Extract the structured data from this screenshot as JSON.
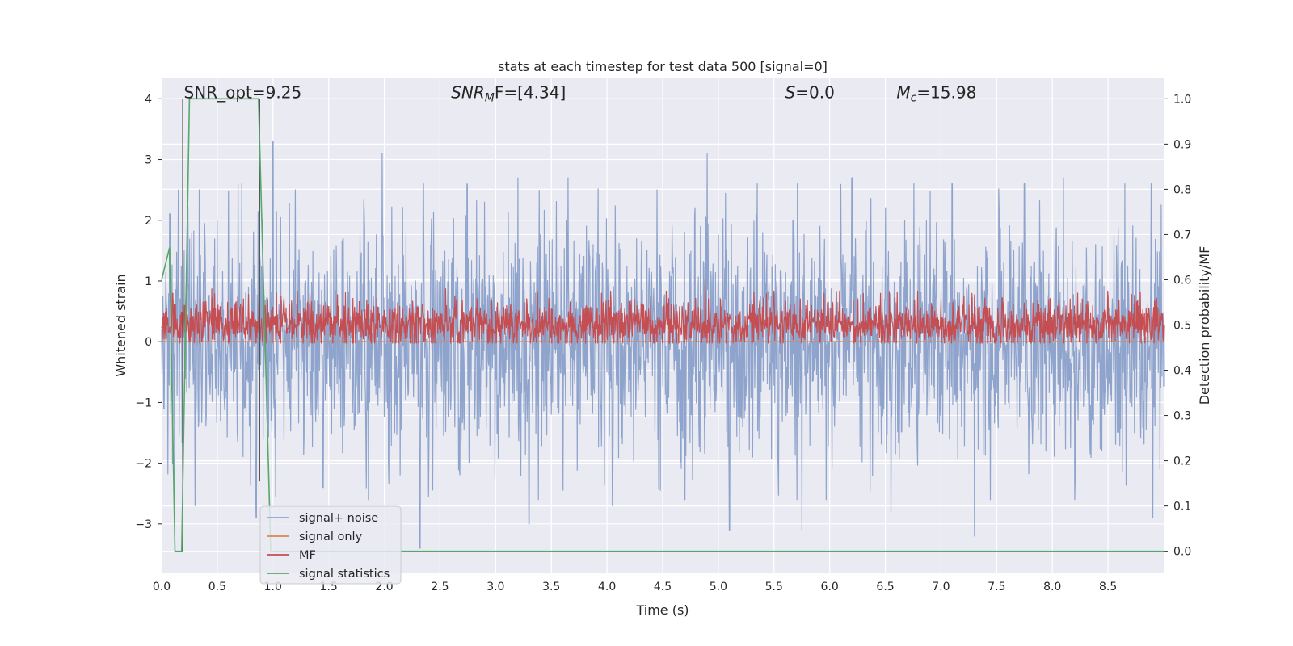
{
  "chart_data": {
    "type": "line",
    "title": "stats at each timestep for test data 500 [signal=0]",
    "xlabel": "Time (s)",
    "ylabel": "Whitened strain",
    "y2label": "Detection probability/MF",
    "xlim": [
      0.0,
      9.0
    ],
    "ylim": [
      -3.8,
      4.35
    ],
    "y2lim": [
      -0.047,
      1.047
    ],
    "x_ticks": [
      0.0,
      0.5,
      1.0,
      1.5,
      2.0,
      2.5,
      3.0,
      3.5,
      4.0,
      4.5,
      5.0,
      5.5,
      6.0,
      6.5,
      7.0,
      7.5,
      8.0,
      8.5
    ],
    "x_tick_labels": [
      "0.0",
      "0.5",
      "1.0",
      "1.5",
      "2.0",
      "2.5",
      "3.0",
      "3.5",
      "4.0",
      "4.5",
      "5.0",
      "5.5",
      "6.0",
      "6.5",
      "7.0",
      "7.5",
      "8.0",
      "8.5"
    ],
    "y_ticks": [
      4,
      3,
      2,
      1,
      0,
      -1,
      -2,
      -3
    ],
    "y_tick_labels": [
      "4",
      "3",
      "2",
      "1",
      "0",
      "−1",
      "−2",
      "−3"
    ],
    "y2_ticks": [
      1.0,
      0.9,
      0.8,
      0.7,
      0.6,
      0.5,
      0.4,
      0.3,
      0.2,
      0.1,
      0.0
    ],
    "y2_tick_labels": [
      "1.0",
      "0.9",
      "0.8",
      "0.7",
      "0.6",
      "0.5",
      "0.4",
      "0.3",
      "0.2",
      "0.1",
      "0.0"
    ],
    "annotations": [
      {
        "name": "snr-opt",
        "text": "SNR_opt=9.25",
        "x": 0.2
      },
      {
        "name": "snr-mf",
        "pre": "SNR",
        "sub": "M",
        "post": "F=[4.34]",
        "x": 2.6
      },
      {
        "name": "s-stat",
        "pre": "S",
        "post": "=0.0",
        "x": 5.6
      },
      {
        "name": "chirp-mass",
        "pre": "M",
        "sub": "c",
        "post": "=15.98",
        "x": 6.6
      }
    ],
    "vertical_markers": [
      {
        "x": 0.19,
        "y_from": -3.45,
        "y_to": 4.0
      },
      {
        "x": 0.88,
        "y_from": -2.3,
        "y_to": 4.0
      }
    ],
    "series": [
      {
        "name": "signal+ noise",
        "color": "#8fa4cc",
        "description": "whitened strain noise, roughly -2.5 to 2.5 with peaks near 3.3 and -3.4",
        "peaks": [
          [
            0.08,
            2.1
          ],
          [
            0.15,
            2.5
          ],
          [
            0.34,
            2.5
          ],
          [
            0.5,
            2.0
          ],
          [
            0.72,
            2.6
          ],
          [
            1.0,
            3.3
          ],
          [
            1.2,
            2.5
          ],
          [
            1.63,
            1.7
          ],
          [
            1.98,
            3.1
          ],
          [
            2.35,
            2.6
          ],
          [
            2.9,
            2.3
          ],
          [
            3.2,
            2.7
          ],
          [
            3.65,
            2.7
          ],
          [
            4.45,
            2.5
          ],
          [
            4.9,
            3.1
          ],
          [
            5.35,
            2.6
          ],
          [
            6.2,
            2.7
          ],
          [
            7.1,
            2.6
          ],
          [
            7.75,
            2.6
          ],
          [
            8.1,
            2.7
          ],
          [
            8.65,
            2.6
          ]
        ],
        "troughs": [
          [
            0.1,
            -2.0
          ],
          [
            0.3,
            -2.7
          ],
          [
            0.85,
            -2.9
          ],
          [
            1.45,
            -2.4
          ],
          [
            2.32,
            -3.4
          ],
          [
            3.3,
            -3.0
          ],
          [
            4.05,
            -2.7
          ],
          [
            4.7,
            -2.6
          ],
          [
            5.1,
            -3.1
          ],
          [
            5.75,
            -3.1
          ],
          [
            6.55,
            -2.8
          ],
          [
            7.3,
            -3.2
          ],
          [
            8.2,
            -2.6
          ],
          [
            8.9,
            -2.9
          ]
        ]
      },
      {
        "name": "signal only",
        "color": "#dd8452",
        "description": "flat at 0 (no signal injected)",
        "points": [
          [
            0.0,
            0.0
          ],
          [
            9.0,
            0.0
          ]
        ]
      },
      {
        "name": "MF",
        "color": "#c44e52",
        "axis": "right",
        "description": "matched-filter output, mostly between 0.45 and 0.58 on right axis, spike near 4.88",
        "peaks": [
          [
            0.1,
            0.57
          ],
          [
            0.45,
            0.58
          ],
          [
            1.1,
            0.56
          ],
          [
            2.55,
            0.58
          ],
          [
            3.95,
            0.57
          ],
          [
            4.88,
            0.6
          ],
          [
            5.95,
            0.57
          ],
          [
            7.55,
            0.56
          ],
          [
            8.5,
            0.56
          ]
        ]
      },
      {
        "name": "signal statistics",
        "color": "#55a868",
        "axis": "right",
        "points": [
          [
            0.0,
            0.6
          ],
          [
            0.07,
            0.67
          ],
          [
            0.12,
            0.0
          ],
          [
            0.18,
            0.0
          ],
          [
            0.25,
            1.0
          ],
          [
            0.87,
            1.0
          ],
          [
            0.98,
            0.0
          ],
          [
            9.0,
            0.0
          ]
        ]
      }
    ],
    "legend": {
      "placement": "lower-left",
      "entries": [
        {
          "label": "signal+ noise",
          "color": "#8fa4cc"
        },
        {
          "label": "signal only",
          "color": "#dd8452"
        },
        {
          "label": "MF",
          "color": "#c44e52"
        },
        {
          "label": "signal statistics",
          "color": "#55a868"
        }
      ]
    }
  }
}
